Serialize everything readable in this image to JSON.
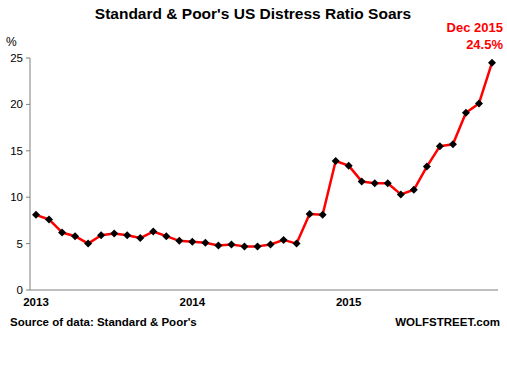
{
  "chart_data": {
    "type": "line",
    "title": "Standard & Poor's US Distress Ratio Soars",
    "y_label": "%",
    "annotations": [
      "Dec 2015",
      "24.5%"
    ],
    "source": "Source of data: Standard & Poor's",
    "credit": "WOLFSTREET.com",
    "categories": [
      "2013",
      null,
      null,
      null,
      null,
      null,
      null,
      null,
      null,
      null,
      null,
      null,
      "2014",
      null,
      null,
      null,
      null,
      null,
      null,
      null,
      null,
      null,
      null,
      null,
      "2015",
      null,
      null,
      null,
      null,
      null,
      null,
      null,
      null,
      null,
      null,
      null
    ],
    "values": [
      8.1,
      7.6,
      6.2,
      5.8,
      5.0,
      5.9,
      6.1,
      5.9,
      5.6,
      6.3,
      5.8,
      5.3,
      5.2,
      5.1,
      4.8,
      4.9,
      4.7,
      4.7,
      4.9,
      5.4,
      5.0,
      8.2,
      8.1,
      13.9,
      13.4,
      11.7,
      11.5,
      11.5,
      10.3,
      10.8,
      13.3,
      15.5,
      15.7,
      19.1,
      20.1,
      24.5
    ],
    "color": "#ff0000",
    "marker": "diamond",
    "ylim": [
      0,
      25
    ],
    "yticks": [
      0,
      5,
      10,
      15,
      20,
      25
    ],
    "grid": false
  }
}
